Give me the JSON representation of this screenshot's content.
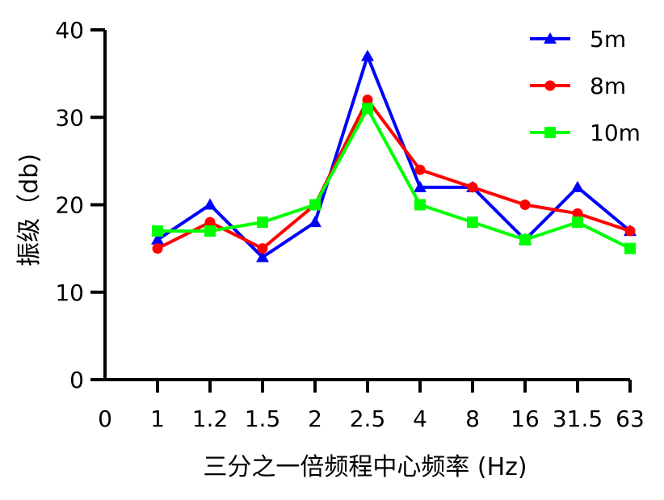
{
  "chart_data": {
    "type": "line",
    "title": "",
    "xlabel": "三分之一倍频程中心频率 (Hz)",
    "ylabel": "振级（db)",
    "ylim": [
      0,
      40
    ],
    "yticks": [
      "0",
      "10",
      "20",
      "30",
      "40"
    ],
    "x_origin_label": "0",
    "categories": [
      "1",
      "1.2",
      "1.5",
      "2",
      "2.5",
      "4",
      "8",
      "16",
      "31.5",
      "63"
    ],
    "grid": false,
    "legend_position": "top-right",
    "series": [
      {
        "name": "5m",
        "color": "#0000ff",
        "marker": "triangle",
        "values": [
          16,
          20,
          14,
          18,
          37,
          22,
          22,
          16,
          22,
          17
        ]
      },
      {
        "name": "8m",
        "color": "#ff0000",
        "marker": "circle",
        "values": [
          15,
          18,
          15,
          20,
          32,
          24,
          22,
          20,
          19,
          17
        ]
      },
      {
        "name": "10m",
        "color": "#00ff00",
        "marker": "square",
        "values": [
          17,
          17,
          18,
          20,
          31,
          20,
          18,
          16,
          18,
          15
        ]
      }
    ]
  }
}
